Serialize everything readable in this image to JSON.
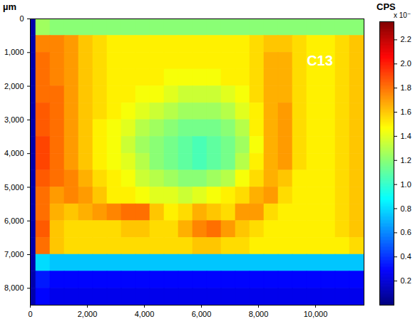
{
  "chart_data": {
    "type": "heatmap",
    "y_label": "µm",
    "annotations": [
      {
        "text": "C13",
        "x": 10150,
        "y": 1250
      }
    ],
    "xlim": [
      0,
      11700
    ],
    "xticks": [
      0,
      2000,
      4000,
      6000,
      8000,
      10000
    ],
    "ylim": [
      0,
      8500
    ],
    "yticks": [
      0,
      1000,
      2000,
      3000,
      4000,
      5000,
      6000,
      7000,
      8000
    ],
    "x_edges": [
      0,
      200,
      700,
      1200,
      1700,
      2200,
      2700,
      3200,
      3700,
      4200,
      4700,
      5200,
      5700,
      6200,
      6700,
      7200,
      7700,
      8200,
      8700,
      9200,
      9700,
      10200,
      10700,
      11200,
      11700
    ],
    "y_edges": [
      0,
      500,
      1000,
      1500,
      2000,
      2500,
      3000,
      3500,
      4000,
      4500,
      5000,
      5500,
      6000,
      6500,
      7000,
      7500,
      8000,
      8500
    ],
    "cells": [
      [
        0.1,
        1.25,
        1.2,
        1.2,
        1.2,
        1.2,
        1.2,
        1.2,
        1.2,
        1.2,
        1.2,
        1.2,
        1.2,
        1.2,
        1.2,
        1.2,
        1.2,
        1.2,
        1.2,
        1.2,
        1.2,
        1.2,
        1.2,
        1.2
      ],
      [
        0.1,
        1.75,
        1.75,
        1.7,
        1.6,
        1.55,
        1.5,
        1.5,
        1.5,
        1.5,
        1.5,
        1.5,
        1.5,
        1.5,
        1.5,
        1.5,
        1.55,
        1.6,
        1.6,
        1.55,
        1.5,
        1.5,
        1.55,
        1.6
      ],
      [
        0.1,
        1.8,
        1.75,
        1.7,
        1.6,
        1.55,
        1.5,
        1.5,
        1.5,
        1.5,
        1.5,
        1.5,
        1.5,
        1.5,
        1.5,
        1.5,
        1.55,
        1.65,
        1.65,
        1.55,
        1.5,
        1.5,
        1.55,
        1.6
      ],
      [
        0.1,
        1.8,
        1.75,
        1.7,
        1.6,
        1.55,
        1.5,
        1.5,
        1.5,
        1.5,
        1.45,
        1.45,
        1.45,
        1.45,
        1.5,
        1.5,
        1.55,
        1.65,
        1.65,
        1.55,
        1.5,
        1.5,
        1.55,
        1.6
      ],
      [
        0.1,
        1.8,
        1.8,
        1.7,
        1.6,
        1.55,
        1.5,
        1.5,
        1.45,
        1.45,
        1.4,
        1.35,
        1.35,
        1.35,
        1.4,
        1.45,
        1.55,
        1.65,
        1.65,
        1.55,
        1.5,
        1.5,
        1.55,
        1.6
      ],
      [
        0.1,
        1.85,
        1.8,
        1.7,
        1.6,
        1.55,
        1.5,
        1.45,
        1.4,
        1.35,
        1.3,
        1.25,
        1.25,
        1.25,
        1.3,
        1.4,
        1.5,
        1.65,
        1.7,
        1.55,
        1.5,
        1.5,
        1.55,
        1.6
      ],
      [
        0.1,
        1.85,
        1.8,
        1.7,
        1.6,
        1.5,
        1.45,
        1.4,
        1.3,
        1.25,
        1.2,
        1.15,
        1.15,
        1.15,
        1.2,
        1.3,
        1.5,
        1.65,
        1.7,
        1.55,
        1.5,
        1.5,
        1.55,
        1.6
      ],
      [
        0.1,
        1.9,
        1.8,
        1.7,
        1.6,
        1.5,
        1.45,
        1.35,
        1.25,
        1.2,
        1.15,
        1.1,
        1.05,
        1.1,
        1.15,
        1.25,
        1.45,
        1.65,
        1.7,
        1.55,
        1.5,
        1.5,
        1.55,
        1.6
      ],
      [
        0.1,
        1.9,
        1.8,
        1.7,
        1.6,
        1.5,
        1.45,
        1.4,
        1.3,
        1.2,
        1.15,
        1.1,
        1.05,
        1.1,
        1.15,
        1.3,
        1.5,
        1.65,
        1.7,
        1.55,
        1.5,
        1.5,
        1.55,
        1.6
      ],
      [
        0.1,
        1.85,
        1.8,
        1.75,
        1.65,
        1.55,
        1.5,
        1.45,
        1.35,
        1.3,
        1.25,
        1.2,
        1.2,
        1.25,
        1.3,
        1.45,
        1.55,
        1.65,
        1.6,
        1.5,
        1.5,
        1.5,
        1.55,
        1.6
      ],
      [
        0.1,
        1.8,
        1.7,
        1.75,
        1.7,
        1.6,
        1.5,
        1.5,
        1.45,
        1.4,
        1.4,
        1.35,
        1.4,
        1.45,
        1.5,
        1.55,
        1.65,
        1.7,
        1.55,
        1.5,
        1.5,
        1.5,
        1.55,
        1.6
      ],
      [
        0.1,
        1.8,
        1.65,
        1.6,
        1.65,
        1.7,
        1.75,
        1.8,
        1.8,
        1.6,
        1.5,
        1.55,
        1.65,
        1.6,
        1.55,
        1.7,
        1.7,
        1.55,
        1.5,
        1.5,
        1.5,
        1.5,
        1.55,
        1.6
      ],
      [
        0.1,
        1.85,
        1.6,
        1.55,
        1.55,
        1.55,
        1.55,
        1.6,
        1.6,
        1.55,
        1.55,
        1.65,
        1.75,
        1.8,
        1.7,
        1.6,
        1.55,
        1.5,
        1.5,
        1.5,
        1.5,
        1.5,
        1.55,
        1.6
      ],
      [
        0.1,
        1.8,
        1.6,
        1.55,
        1.55,
        1.55,
        1.55,
        1.55,
        1.55,
        1.55,
        1.55,
        1.55,
        1.6,
        1.6,
        1.55,
        1.55,
        1.5,
        1.5,
        1.5,
        1.5,
        1.5,
        1.5,
        1.5,
        1.55
      ],
      [
        0.1,
        0.8,
        0.75,
        0.75,
        0.75,
        0.75,
        0.75,
        0.75,
        0.75,
        0.75,
        0.75,
        0.75,
        0.75,
        0.75,
        0.75,
        0.75,
        0.75,
        0.75,
        0.75,
        0.75,
        0.75,
        0.75,
        0.75,
        0.75
      ],
      [
        0.1,
        0.35,
        0.3,
        0.3,
        0.3,
        0.3,
        0.3,
        0.3,
        0.3,
        0.3,
        0.3,
        0.3,
        0.3,
        0.3,
        0.3,
        0.3,
        0.3,
        0.3,
        0.3,
        0.3,
        0.3,
        0.3,
        0.3,
        0.3
      ],
      [
        0.1,
        0.3,
        0.25,
        0.25,
        0.25,
        0.25,
        0.25,
        0.25,
        0.25,
        0.25,
        0.25,
        0.25,
        0.25,
        0.25,
        0.25,
        0.25,
        0.25,
        0.25,
        0.25,
        0.25,
        0.25,
        0.25,
        0.25,
        0.25
      ]
    ],
    "colorbar": {
      "label": "CPS",
      "multiplier": "x 10⁻",
      "range": [
        0,
        2.35
      ],
      "ticks": [
        0.2,
        0.4,
        0.6,
        0.8,
        1,
        1.2,
        1.4,
        1.6,
        1.8,
        2,
        2.2
      ]
    }
  }
}
